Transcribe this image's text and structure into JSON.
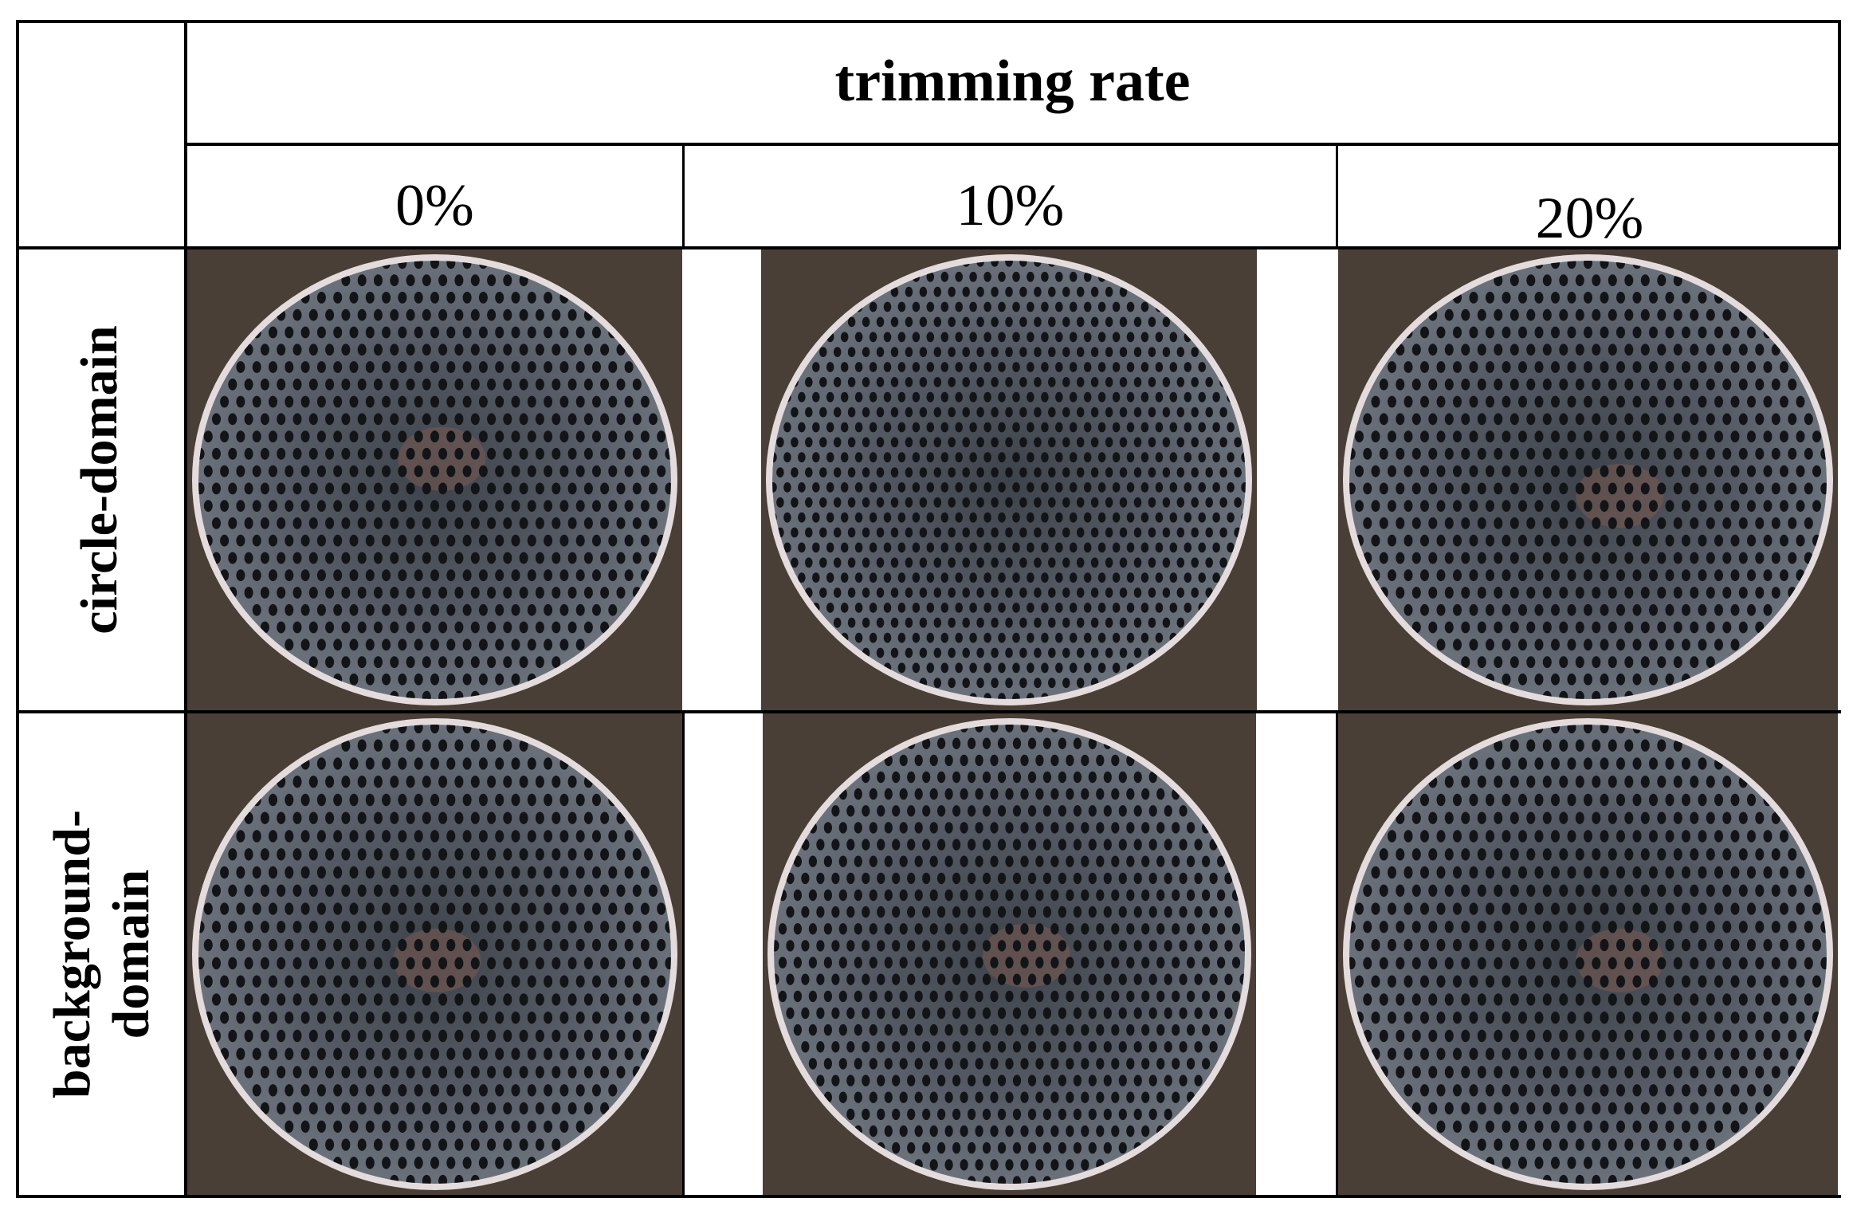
{
  "table": {
    "super_header": "trimming rate",
    "columns": [
      "0%",
      "10%",
      "20%"
    ],
    "rows": [
      {
        "label": "circle-domain",
        "label_lines": [
          "circle-domain"
        ]
      },
      {
        "label": "background-domain",
        "label_lines": [
          "background-",
          "domain"
        ]
      }
    ]
  },
  "images": [
    {
      "row": "circle-domain",
      "column": "0%",
      "depicts": "tube-sheet"
    },
    {
      "row": "circle-domain",
      "column": "10%",
      "depicts": "tube-sheet"
    },
    {
      "row": "circle-domain",
      "column": "20%",
      "depicts": "tube-sheet"
    },
    {
      "row": "background-domain",
      "column": "0%",
      "depicts": "tube-sheet"
    },
    {
      "row": "background-domain",
      "column": "10%",
      "depicts": "tube-sheet"
    },
    {
      "row": "background-domain",
      "column": "20%",
      "depicts": "tube-sheet"
    }
  ],
  "colors": {
    "plate": "#545963",
    "hole": "#121418",
    "rim": "#e4dcdc",
    "surround": "#4a3f36",
    "rust": "#7a5a50"
  }
}
